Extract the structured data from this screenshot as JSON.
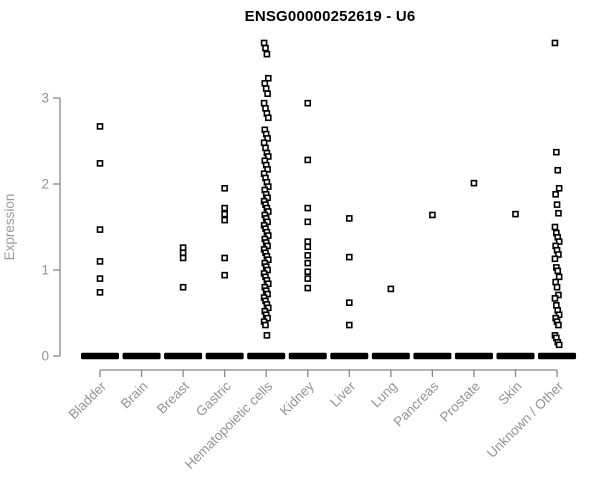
{
  "figure": {
    "title": "ENSG00000252619 - U6"
  },
  "axes": {
    "y_label": "Expression",
    "y_ticks": [
      "0",
      "1",
      "2",
      "3"
    ]
  },
  "colors": {
    "points": "#000000",
    "zero_bar": "#000000",
    "axis_line": "#878787",
    "tick_label": "#939393",
    "axis_label": "#9a9a9a",
    "title": "#000000",
    "background": "#ffffff"
  },
  "chart_data": {
    "type": "scatter",
    "subtype": "strip-plot",
    "title": "ENSG00000252619 - U6",
    "xlabel": "",
    "ylabel": "Expression",
    "ylim": [
      0,
      3.7
    ],
    "y_ticks": [
      0,
      1,
      2,
      3
    ],
    "grid": "off",
    "legend": "none",
    "marker": "open-square",
    "zero_overplot_note": "each category has a dense horizontal bar of many overlapping samples at expression 0",
    "categories": [
      "Bladder",
      "Brain",
      "Breast",
      "Gastric",
      "Hematopoietic cells",
      "Kidney",
      "Liver",
      "Lung",
      "Pancreas",
      "Prostate",
      "Skin",
      "Unknown / Other"
    ],
    "series": [
      {
        "name": "Bladder",
        "zero_bar": true,
        "values": [
          2.67,
          2.24,
          1.47,
          1.1,
          0.9,
          0.74
        ]
      },
      {
        "name": "Brain",
        "zero_bar": true,
        "values": []
      },
      {
        "name": "Breast",
        "zero_bar": true,
        "values": [
          1.26,
          1.2,
          1.14,
          0.8
        ]
      },
      {
        "name": "Gastric",
        "zero_bar": true,
        "values": [
          1.95,
          1.72,
          1.65,
          1.58,
          1.14,
          0.94
        ]
      },
      {
        "name": "Hematopoietic cells",
        "zero_bar": true,
        "values": [
          3.64,
          3.58,
          3.51,
          3.23,
          3.17,
          3.11,
          3.05,
          2.94,
          2.88,
          2.82,
          2.77,
          2.63,
          2.58,
          2.53,
          2.48,
          2.42,
          2.36,
          2.32,
          2.27,
          2.22,
          2.17,
          2.12,
          2.07,
          2.02,
          1.97,
          1.93,
          1.88,
          1.84,
          1.8,
          1.76,
          1.72,
          1.68,
          1.64,
          1.6,
          1.56,
          1.52,
          1.48,
          1.44,
          1.4,
          1.36,
          1.32,
          1.28,
          1.24,
          1.2,
          1.16,
          1.12,
          1.08,
          1.04,
          1.0,
          0.96,
          0.92,
          0.88,
          0.84,
          0.8,
          0.76,
          0.72,
          0.68,
          0.64,
          0.6,
          0.56,
          0.52,
          0.48,
          0.44,
          0.4,
          0.36,
          0.24
        ]
      },
      {
        "name": "Kidney",
        "zero_bar": true,
        "values": [
          2.94,
          2.28,
          1.72,
          1.56,
          1.33,
          1.27,
          1.17,
          1.08,
          0.98,
          0.9,
          0.79
        ]
      },
      {
        "name": "Liver",
        "zero_bar": true,
        "values": [
          1.6,
          1.15,
          0.62,
          0.36
        ]
      },
      {
        "name": "Lung",
        "zero_bar": true,
        "values": [
          0.78
        ]
      },
      {
        "name": "Pancreas",
        "zero_bar": true,
        "values": [
          1.64
        ]
      },
      {
        "name": "Prostate",
        "zero_bar": true,
        "values": [
          2.01
        ]
      },
      {
        "name": "Skin",
        "zero_bar": true,
        "values": [
          1.65
        ]
      },
      {
        "name": "Unknown / Other",
        "zero_bar": true,
        "values": [
          3.64,
          2.37,
          2.16,
          1.95,
          1.88,
          1.76,
          1.66,
          1.5,
          1.43,
          1.38,
          1.33,
          1.28,
          1.23,
          1.18,
          1.13,
          1.03,
          0.99,
          0.92,
          0.86,
          0.8,
          0.71,
          0.67,
          0.59,
          0.53,
          0.48,
          0.44,
          0.4,
          0.36,
          0.24,
          0.21,
          0.16,
          0.13
        ]
      }
    ]
  }
}
